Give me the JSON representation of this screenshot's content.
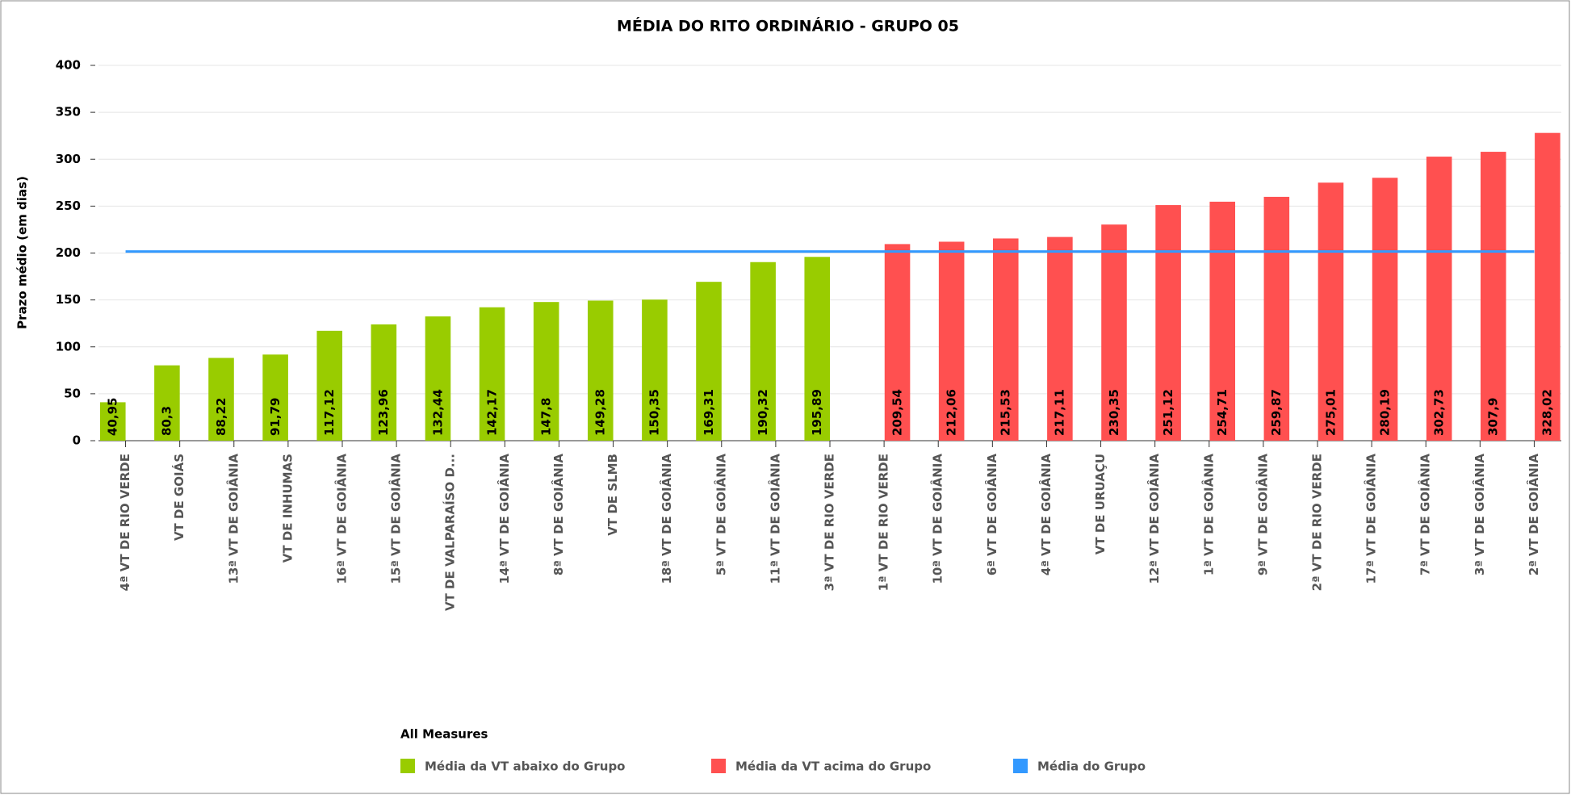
{
  "chart_data": {
    "type": "bar",
    "title": "MÉDIA DO RITO ORDINÁRIO - GRUPO 05",
    "y_label": "Prazo médio (em dias)",
    "legend_title": "All Measures",
    "categories": [
      "4ª VT DE RIO VERDE",
      "VT DE GOIÁS",
      "13ª VT DE GOIÂNIA",
      "VT DE INHUMAS",
      "16ª VT DE GOIÂNIA",
      "15ª VT DE GOIÂNIA",
      "VT DE VALPARAÍSO D...",
      "14ª VT DE GOIÂNIA",
      "8ª VT DE GOIÂNIA",
      "VT DE SLMB",
      "18ª VT DE GOIÂNIA",
      "5ª VT DE GOIÂNIA",
      "11ª VT DE GOIÂNIA",
      "3ª VT DE RIO VERDE",
      "1ª VT DE RIO VERDE",
      "10ª VT DE GOIÂNIA",
      "6ª VT DE GOIÂNIA",
      "4ª VT DE GOIÂNIA",
      "VT DE URUAÇU",
      "12ª VT DE GOIÂNIA",
      "1ª VT DE GOIÂNIA",
      "9ª VT DE GOIÂNIA",
      "2ª VT DE RIO VERDE",
      "17ª VT DE GOIÂNIA",
      "7ª VT DE GOIÂNIA",
      "3ª VT DE GOIÂNIA",
      "2ª VT DE GOIÂNIA"
    ],
    "series": [
      {
        "name": "Média da VT abaixo do Grupo",
        "color": "#99cc00",
        "type": "bar",
        "values": [
          40.95,
          80.3,
          88.22,
          91.79,
          117.12,
          123.96,
          132.44,
          142.17,
          147.8,
          149.28,
          150.35,
          169.31,
          190.32,
          195.89,
          null,
          null,
          null,
          null,
          null,
          null,
          null,
          null,
          null,
          null,
          null,
          null,
          null
        ],
        "value_labels": [
          "40,95",
          "80,3",
          "88,22",
          "91,79",
          "117,12",
          "123,96",
          "132,44",
          "142,17",
          "147,8",
          "149,28",
          "150,35",
          "169,31",
          "190,32",
          "195,89",
          null,
          null,
          null,
          null,
          null,
          null,
          null,
          null,
          null,
          null,
          null,
          null,
          null
        ]
      },
      {
        "name": "Média da VT acima do Grupo",
        "color": "#ff5050",
        "type": "bar",
        "values": [
          null,
          null,
          null,
          null,
          null,
          null,
          null,
          null,
          null,
          null,
          null,
          null,
          null,
          null,
          209.54,
          212.06,
          215.53,
          217.11,
          230.35,
          251.12,
          254.71,
          259.87,
          275.01,
          280.19,
          302.73,
          307.9,
          328.02
        ],
        "value_labels": [
          null,
          null,
          null,
          null,
          null,
          null,
          null,
          null,
          null,
          null,
          null,
          null,
          null,
          null,
          "209,54",
          "212,06",
          "215,53",
          "217,11",
          "230,35",
          "251,12",
          "254,71",
          "259,87",
          "275,01",
          "280,19",
          "302,73",
          "307,9",
          "328,02"
        ]
      },
      {
        "name": "Média do Grupo",
        "color": "#3399ff",
        "type": "line",
        "values": [
          201.6,
          201.6,
          201.6,
          201.6,
          201.6,
          201.6,
          201.6,
          201.6,
          201.6,
          201.6,
          201.6,
          201.6,
          201.6,
          201.6,
          201.6,
          201.6,
          201.6,
          201.6,
          201.6,
          201.6,
          201.6,
          201.6,
          201.6,
          201.6,
          201.6,
          201.6,
          201.6
        ]
      }
    ],
    "ylim": [
      0,
      400
    ],
    "yticks": [
      0,
      50,
      100,
      150,
      200,
      250,
      300,
      350,
      400
    ],
    "grid": true
  }
}
